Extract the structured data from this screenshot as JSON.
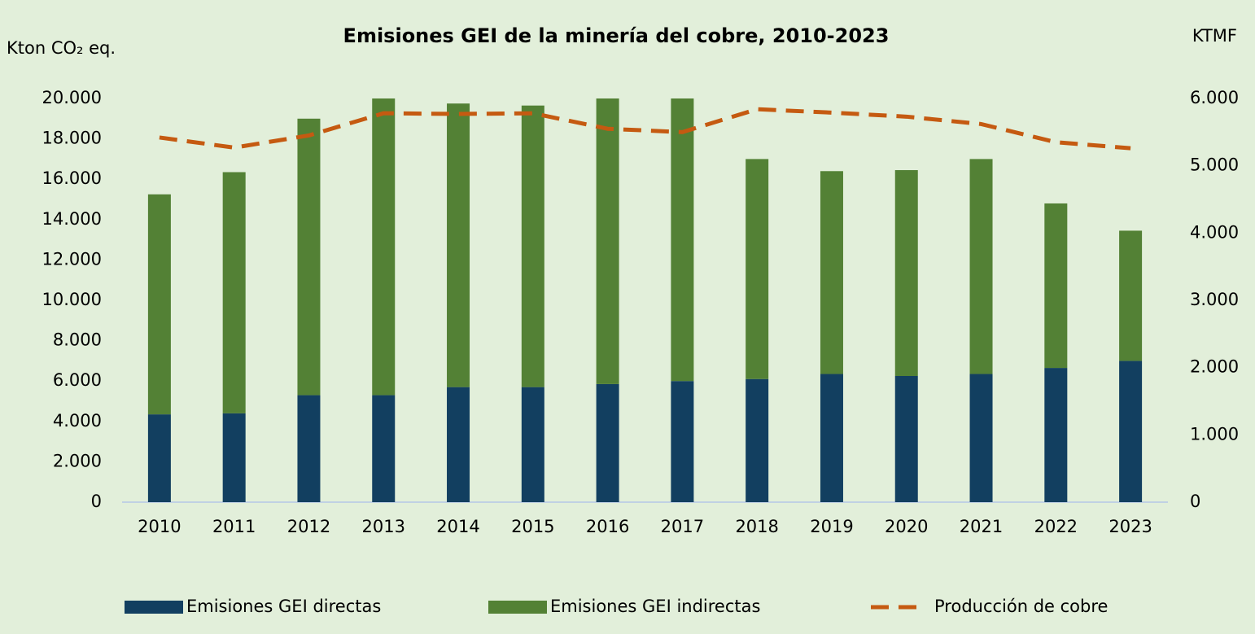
{
  "chart_data": {
    "type": "bar",
    "stacked": true,
    "title": "Emisiones GEI de la minería del cobre, 2010-2023",
    "y_label": "Kton CO₂ eq.",
    "y2_label": "KTMF",
    "categories": [
      "2010",
      "2011",
      "2012",
      "2013",
      "2014",
      "2015",
      "2016",
      "2017",
      "2018",
      "2019",
      "2020",
      "2021",
      "2022",
      "2023"
    ],
    "series": [
      {
        "name": "Emisiones GEI directas",
        "type": "bar",
        "color": "#123f60",
        "values": [
          4350,
          4400,
          5300,
          5300,
          5700,
          5700,
          5850,
          6000,
          6100,
          6350,
          6250,
          6350,
          6650,
          7000
        ]
      },
      {
        "name": "Emisiones GEI indirectas",
        "type": "bar",
        "color": "#538135",
        "values": [
          10900,
          11950,
          13700,
          14700,
          14050,
          13950,
          14150,
          14000,
          10900,
          10050,
          10200,
          10650,
          8150,
          6450
        ]
      },
      {
        "name": "Producción de cobre",
        "type": "line",
        "axis": "y2",
        "color": "#c55a11",
        "dashed": true,
        "values": [
          5420,
          5270,
          5450,
          5780,
          5770,
          5780,
          5550,
          5500,
          5840,
          5790,
          5730,
          5620,
          5350,
          5260
        ]
      }
    ],
    "ylim": [
      0,
      20000
    ],
    "yticks": [
      0,
      {
        "value": 2000,
        "label": "2.000"
      },
      {
        "value": 4000,
        "label": "4.000"
      },
      {
        "value": 6000,
        "label": "6.000"
      },
      {
        "value": 8000,
        "label": "8.000"
      },
      {
        "value": 10000,
        "label": "10.000"
      },
      {
        "value": 12000,
        "label": "12.000"
      },
      {
        "value": 14000,
        "label": "14.000"
      },
      {
        "value": 16000,
        "label": "16.000"
      },
      {
        "value": 18000,
        "label": "18.000"
      },
      {
        "value": 20000,
        "label": "20.000"
      }
    ],
    "y2lim": [
      0,
      6000
    ],
    "y2ticks": [
      0,
      {
        "value": 1000,
        "label": "1.000"
      },
      {
        "value": 2000,
        "label": "2.000"
      },
      {
        "value": 3000,
        "label": "3.000"
      },
      {
        "value": 4000,
        "label": "4.000"
      },
      {
        "value": 5000,
        "label": "5.000"
      },
      {
        "value": 6000,
        "label": "6.000"
      }
    ],
    "grid": false,
    "legend": "bottom"
  }
}
